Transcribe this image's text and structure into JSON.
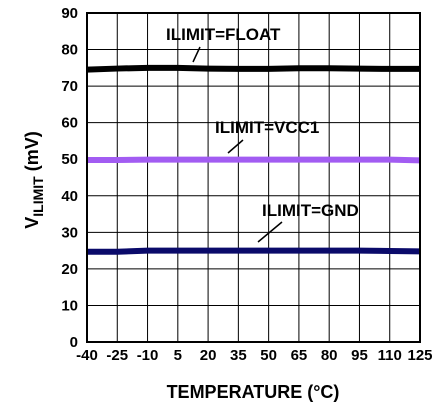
{
  "chart_data": {
    "type": "line",
    "title": "",
    "xlabel": "TEMPERATURE (°C)",
    "ylabel_main": "V",
    "ylabel_sub": "ILIMIT",
    "ylabel_unit": " (mV)",
    "xlim": [
      -40,
      125
    ],
    "ylim": [
      0,
      90
    ],
    "x_ticks": [
      -40,
      -25,
      -10,
      5,
      20,
      35,
      50,
      65,
      80,
      95,
      110,
      125
    ],
    "y_ticks": [
      0,
      10,
      20,
      30,
      40,
      50,
      60,
      70,
      80,
      90
    ],
    "grid": true,
    "series": [
      {
        "name": "ILIMIT=FLOAT",
        "color": "#000000",
        "x": [
          -40,
          -25,
          -10,
          5,
          20,
          35,
          50,
          65,
          80,
          95,
          110,
          125
        ],
        "y": [
          74.5,
          74.8,
          75.0,
          75.0,
          74.8,
          74.7,
          74.7,
          74.9,
          74.9,
          74.8,
          74.7,
          74.7
        ]
      },
      {
        "name": "ILIMIT=VCC1",
        "color": "#a25cf2",
        "x": [
          -40,
          -25,
          -10,
          5,
          20,
          35,
          50,
          65,
          80,
          95,
          110,
          125
        ],
        "y": [
          49.8,
          49.8,
          49.9,
          49.9,
          49.9,
          49.9,
          49.9,
          49.9,
          49.9,
          49.9,
          49.9,
          49.7
        ]
      },
      {
        "name": "ILIMIT=GND",
        "color": "#0a0a6a",
        "x": [
          -40,
          -25,
          -10,
          5,
          20,
          35,
          50,
          65,
          80,
          95,
          110,
          125
        ],
        "y": [
          24.7,
          24.7,
          25.0,
          25.0,
          25.0,
          25.0,
          25.0,
          25.0,
          25.0,
          25.0,
          24.9,
          24.8
        ]
      }
    ]
  }
}
